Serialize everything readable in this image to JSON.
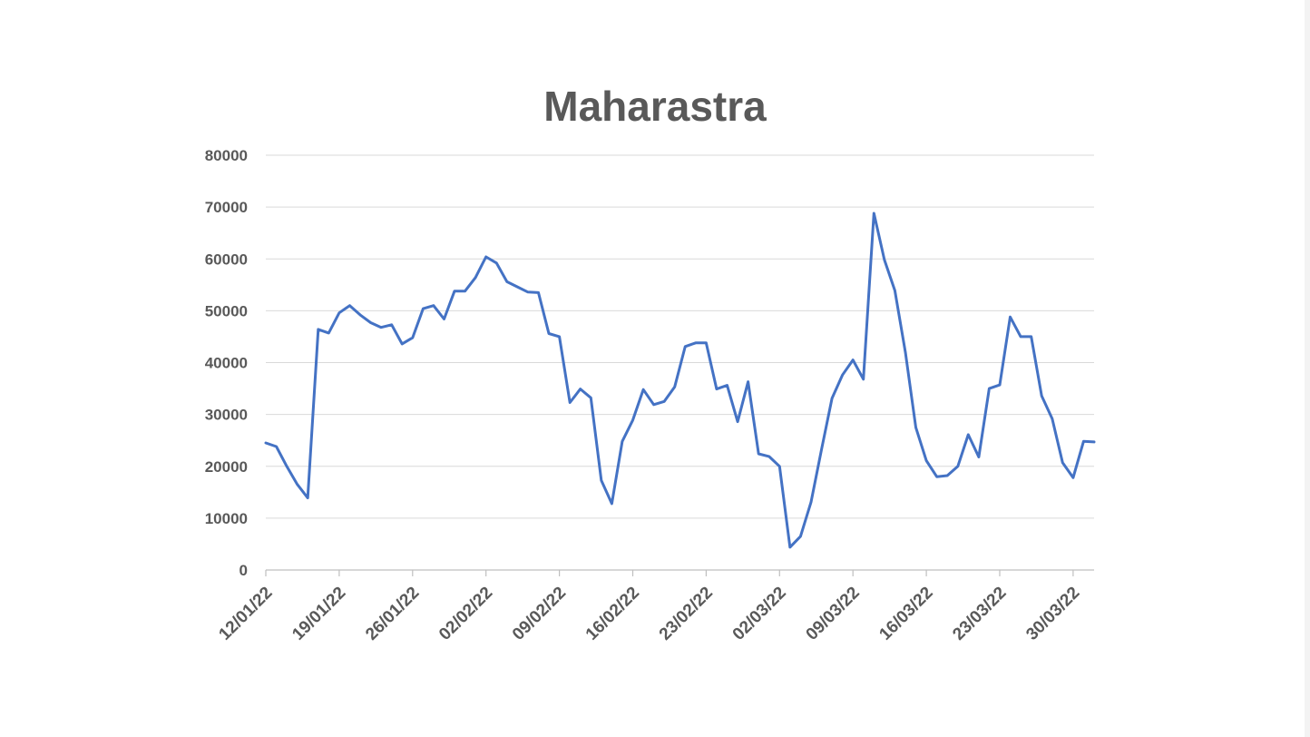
{
  "chart_data": {
    "type": "line",
    "title": "Maharastra",
    "ylim": [
      0,
      80000
    ],
    "y_ticks": [
      0,
      10000,
      20000,
      30000,
      40000,
      50000,
      60000,
      70000,
      80000
    ],
    "x_tick_labels": [
      "12/01/22",
      "19/01/22",
      "26/01/22",
      "02/02/22",
      "09/02/22",
      "16/02/22",
      "23/02/22",
      "02/03/22",
      "09/03/22",
      "16/03/22",
      "23/03/22",
      "30/03/22"
    ],
    "x_start": "12/01/22",
    "x_end": "01/04/22",
    "grid": true,
    "legend": "none",
    "series_color": "#4472c4",
    "series": [
      {
        "dates": [
          "12/01/22",
          "13/01/22",
          "14/01/22",
          "15/01/22",
          "16/01/22",
          "17/01/22",
          "18/01/22",
          "19/01/22",
          "20/01/22",
          "21/01/22",
          "22/01/22",
          "23/01/22",
          "24/01/22",
          "25/01/22",
          "26/01/22",
          "27/01/22",
          "28/01/22",
          "29/01/22",
          "30/01/22",
          "31/01/22",
          "01/02/22",
          "02/02/22",
          "03/02/22",
          "04/02/22",
          "05/02/22",
          "06/02/22",
          "07/02/22",
          "08/02/22",
          "09/02/22",
          "10/02/22",
          "11/02/22",
          "12/02/22",
          "13/02/22",
          "14/02/22",
          "15/02/22",
          "16/02/22",
          "17/02/22",
          "18/02/22",
          "19/02/22",
          "20/02/22",
          "21/02/22",
          "22/02/22",
          "23/02/22",
          "24/02/22",
          "25/02/22",
          "26/02/22",
          "27/02/22",
          "28/02/22",
          "01/03/22",
          "02/03/22",
          "03/03/22",
          "04/03/22",
          "05/03/22",
          "06/03/22",
          "07/03/22",
          "08/03/22",
          "09/03/22",
          "10/03/22",
          "11/03/22",
          "12/03/22",
          "13/03/22",
          "14/03/22",
          "15/03/22",
          "16/03/22",
          "17/03/22",
          "18/03/22",
          "19/03/22",
          "20/03/22",
          "21/03/22",
          "22/03/22",
          "23/03/22",
          "24/03/22",
          "25/03/22",
          "26/03/22",
          "27/03/22",
          "28/03/22",
          "29/03/22",
          "30/03/22",
          "31/03/22",
          "01/04/22"
        ],
        "values": [
          24500,
          23800,
          20000,
          16500,
          13900,
          46400,
          45700,
          49600,
          51000,
          49200,
          47700,
          46800,
          47300,
          43600,
          44800,
          50400,
          51000,
          48400,
          53800,
          53800,
          56400,
          60400,
          59200,
          55600,
          54600,
          53600,
          53500,
          45600,
          45000,
          32300,
          34900,
          33200,
          17300,
          12800,
          24800,
          28900,
          34800,
          31900,
          32500,
          35300,
          43100,
          43800,
          43800,
          34900,
          35600,
          28600,
          36300,
          22400,
          21900,
          20000,
          4400,
          6500,
          13100,
          23200,
          33100,
          37600,
          40500,
          36800,
          68800,
          59800,
          53900,
          42000,
          27500,
          21100,
          18000,
          18200,
          20000,
          26100,
          21800,
          35000,
          35700,
          48800,
          45000,
          45000,
          33600,
          29200,
          20700,
          17800,
          24800,
          24700
        ]
      }
    ]
  }
}
